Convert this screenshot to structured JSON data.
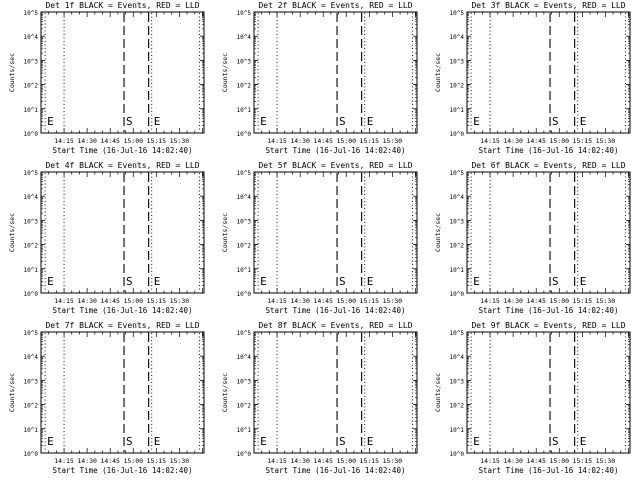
{
  "chart_data": [
    {
      "type": "line",
      "title": "Det 1f BLACK = Events, RED = LLD",
      "ylabel": "Counts/sec",
      "xlabel": "Start Time (16-Jul-16 14:02:40)",
      "x_ticks": [
        "14:15",
        "14:30",
        "14:45",
        "15:00",
        "15:15",
        "15:30"
      ],
      "y_ticks": [
        "10^0",
        "10^1",
        "10^2",
        "10^3",
        "10^4",
        "10^5"
      ],
      "ylim": [
        1,
        100000
      ],
      "scale": "log",
      "markers": [
        {
          "label": "E",
          "time": "14:02:40",
          "style": "dotted"
        },
        {
          "label": "",
          "time": "14:15",
          "style": "dotted"
        },
        {
          "label": "S",
          "time": "14:54",
          "style": "dashed"
        },
        {
          "label": "",
          "time": "15:10",
          "style": "dashed"
        },
        {
          "label": "E",
          "time": "15:12",
          "style": "dotted"
        },
        {
          "label": "",
          "time": "15:43",
          "style": "dotted"
        }
      ],
      "series": []
    },
    {
      "type": "line",
      "title": "Det 2f BLACK = Events, RED = LLD",
      "ylabel": "Counts/sec",
      "xlabel": "Start Time (16-Jul-16 14:02:40)",
      "x_ticks": [
        "14:15",
        "14:30",
        "14:45",
        "15:00",
        "15:15",
        "15:30"
      ],
      "y_ticks": [
        "10^0",
        "10^1",
        "10^2",
        "10^3",
        "10^4",
        "10^5"
      ],
      "ylim": [
        1,
        100000
      ],
      "scale": "log",
      "markers": [
        {
          "label": "E",
          "time": "14:02:40",
          "style": "dotted"
        },
        {
          "label": "",
          "time": "14:15",
          "style": "dotted"
        },
        {
          "label": "S",
          "time": "14:54",
          "style": "dashed"
        },
        {
          "label": "",
          "time": "15:10",
          "style": "dashed"
        },
        {
          "label": "E",
          "time": "15:12",
          "style": "dotted"
        },
        {
          "label": "",
          "time": "15:43",
          "style": "dotted"
        }
      ],
      "series": []
    },
    {
      "type": "line",
      "title": "Det 3f BLACK = Events, RED = LLD",
      "ylabel": "Counts/sec",
      "xlabel": "Start Time (16-Jul-16 14:02:40)",
      "x_ticks": [
        "14:15",
        "14:30",
        "14:45",
        "15:00",
        "15:15",
        "15:30"
      ],
      "y_ticks": [
        "10^0",
        "10^1",
        "10^2",
        "10^3",
        "10^4",
        "10^5"
      ],
      "ylim": [
        1,
        100000
      ],
      "scale": "log",
      "markers": [
        {
          "label": "E",
          "time": "14:02:40",
          "style": "dotted"
        },
        {
          "label": "",
          "time": "14:15",
          "style": "dotted"
        },
        {
          "label": "S",
          "time": "14:54",
          "style": "dashed"
        },
        {
          "label": "",
          "time": "15:10",
          "style": "dashed"
        },
        {
          "label": "E",
          "time": "15:12",
          "style": "dotted"
        },
        {
          "label": "",
          "time": "15:43",
          "style": "dotted"
        }
      ],
      "series": []
    },
    {
      "type": "line",
      "title": "Det 4f BLACK = Events, RED = LLD",
      "ylabel": "Counts/sec",
      "xlabel": "Start Time (16-Jul-16 14:02:40)",
      "x_ticks": [
        "14:15",
        "14:30",
        "14:45",
        "15:00",
        "15:15",
        "15:30"
      ],
      "y_ticks": [
        "10^0",
        "10^1",
        "10^2",
        "10^3",
        "10^4",
        "10^5"
      ],
      "ylim": [
        1,
        100000
      ],
      "scale": "log",
      "markers": [
        {
          "label": "E",
          "time": "14:02:40",
          "style": "dotted"
        },
        {
          "label": "",
          "time": "14:15",
          "style": "dotted"
        },
        {
          "label": "S",
          "time": "14:54",
          "style": "dashed"
        },
        {
          "label": "",
          "time": "15:10",
          "style": "dashed"
        },
        {
          "label": "E",
          "time": "15:12",
          "style": "dotted"
        },
        {
          "label": "",
          "time": "15:43",
          "style": "dotted"
        }
      ],
      "series": []
    },
    {
      "type": "line",
      "title": "Det 5f BLACK = Events, RED = LLD",
      "ylabel": "Counts/sec",
      "xlabel": "Start Time (16-Jul-16 14:02:40)",
      "x_ticks": [
        "14:15",
        "14:30",
        "14:45",
        "15:00",
        "15:15",
        "15:30"
      ],
      "y_ticks": [
        "10^0",
        "10^1",
        "10^2",
        "10^3",
        "10^4",
        "10^5"
      ],
      "ylim": [
        1,
        100000
      ],
      "scale": "log",
      "markers": [
        {
          "label": "E",
          "time": "14:02:40",
          "style": "dotted"
        },
        {
          "label": "",
          "time": "14:15",
          "style": "dotted"
        },
        {
          "label": "S",
          "time": "14:54",
          "style": "dashed"
        },
        {
          "label": "",
          "time": "15:10",
          "style": "dashed"
        },
        {
          "label": "E",
          "time": "15:12",
          "style": "dotted"
        },
        {
          "label": "",
          "time": "15:43",
          "style": "dotted"
        }
      ],
      "series": []
    },
    {
      "type": "line",
      "title": "Det 6f BLACK = Events, RED = LLD",
      "ylabel": "Counts/sec",
      "xlabel": "Start Time (16-Jul-16 14:02:40)",
      "x_ticks": [
        "14:15",
        "14:30",
        "14:45",
        "15:00",
        "15:15",
        "15:30"
      ],
      "y_ticks": [
        "10^0",
        "10^1",
        "10^2",
        "10^3",
        "10^4",
        "10^5"
      ],
      "ylim": [
        1,
        100000
      ],
      "scale": "log",
      "markers": [
        {
          "label": "E",
          "time": "14:02:40",
          "style": "dotted"
        },
        {
          "label": "",
          "time": "14:15",
          "style": "dotted"
        },
        {
          "label": "S",
          "time": "14:54",
          "style": "dashed"
        },
        {
          "label": "",
          "time": "15:10",
          "style": "dashed"
        },
        {
          "label": "E",
          "time": "15:12",
          "style": "dotted"
        },
        {
          "label": "",
          "time": "15:43",
          "style": "dotted"
        }
      ],
      "series": []
    },
    {
      "type": "line",
      "title": "Det 7f BLACK = Events, RED = LLD",
      "ylabel": "Counts/sec",
      "xlabel": "Start Time (16-Jul-16 14:02:40)",
      "x_ticks": [
        "14:15",
        "14:30",
        "14:45",
        "15:00",
        "15:15",
        "15:30"
      ],
      "y_ticks": [
        "10^0",
        "10^1",
        "10^2",
        "10^3",
        "10^4",
        "10^5"
      ],
      "ylim": [
        1,
        100000
      ],
      "scale": "log",
      "markers": [
        {
          "label": "E",
          "time": "14:02:40",
          "style": "dotted"
        },
        {
          "label": "",
          "time": "14:15",
          "style": "dotted"
        },
        {
          "label": "S",
          "time": "14:54",
          "style": "dashed"
        },
        {
          "label": "",
          "time": "15:10",
          "style": "dashed"
        },
        {
          "label": "E",
          "time": "15:12",
          "style": "dotted"
        },
        {
          "label": "",
          "time": "15:43",
          "style": "dotted"
        }
      ],
      "series": []
    },
    {
      "type": "line",
      "title": "Det 8f BLACK = Events, RED = LLD",
      "ylabel": "Counts/sec",
      "xlabel": "Start Time (16-Jul-16 14:02:40)",
      "x_ticks": [
        "14:15",
        "14:30",
        "14:45",
        "15:00",
        "15:15",
        "15:30"
      ],
      "y_ticks": [
        "10^0",
        "10^1",
        "10^2",
        "10^3",
        "10^4",
        "10^5"
      ],
      "ylim": [
        1,
        100000
      ],
      "scale": "log",
      "markers": [
        {
          "label": "E",
          "time": "14:02:40",
          "style": "dotted"
        },
        {
          "label": "",
          "time": "14:15",
          "style": "dotted"
        },
        {
          "label": "S",
          "time": "14:54",
          "style": "dashed"
        },
        {
          "label": "",
          "time": "15:10",
          "style": "dashed"
        },
        {
          "label": "E",
          "time": "15:12",
          "style": "dotted"
        },
        {
          "label": "",
          "time": "15:43",
          "style": "dotted"
        }
      ],
      "series": []
    },
    {
      "type": "line",
      "title": "Det 9f BLACK = Events, RED = LLD",
      "ylabel": "Counts/sec",
      "xlabel": "Start Time (16-Jul-16 14:02:40)",
      "x_ticks": [
        "14:15",
        "14:30",
        "14:45",
        "15:00",
        "15:15",
        "15:30"
      ],
      "y_ticks": [
        "10^0",
        "10^1",
        "10^2",
        "10^3",
        "10^4",
        "10^5"
      ],
      "ylim": [
        1,
        100000
      ],
      "scale": "log",
      "markers": [
        {
          "label": "E",
          "time": "14:02:40",
          "style": "dotted"
        },
        {
          "label": "",
          "time": "14:15",
          "style": "dotted"
        },
        {
          "label": "S",
          "time": "14:54",
          "style": "dashed"
        },
        {
          "label": "",
          "time": "15:10",
          "style": "dashed"
        },
        {
          "label": "E",
          "time": "15:12",
          "style": "dotted"
        },
        {
          "label": "",
          "time": "15:43",
          "style": "dotted"
        }
      ],
      "series": []
    }
  ]
}
